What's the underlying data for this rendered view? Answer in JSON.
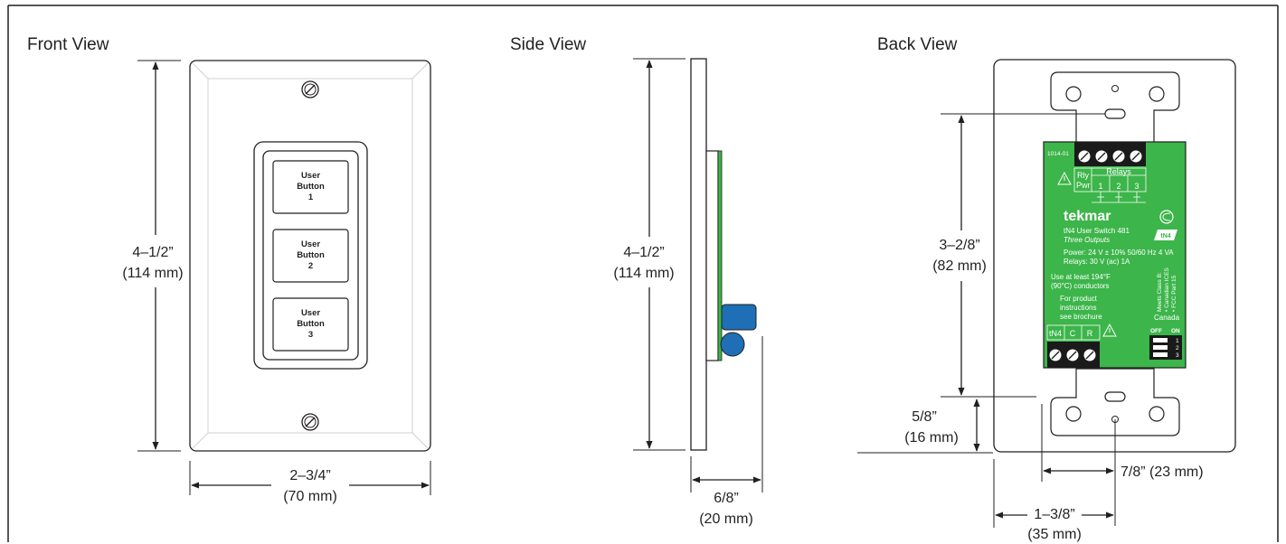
{
  "views": {
    "front": {
      "title": "Front View",
      "height_dim": {
        "imperial": "4–1/2”",
        "metric": "(114 mm)"
      },
      "width_dim": {
        "imperial": "2–3/4”",
        "metric": "(70 mm)"
      },
      "buttons": [
        {
          "line1": "User",
          "line2": "Button",
          "line3": "1"
        },
        {
          "line1": "User",
          "line2": "Button",
          "line3": "2"
        },
        {
          "line1": "User",
          "line2": "Button",
          "line3": "3"
        }
      ]
    },
    "side": {
      "title": "Side View",
      "height_dim": {
        "imperial": "4–1/2”",
        "metric": "(114 mm)"
      },
      "depth_dim": {
        "imperial": "6/8”",
        "metric": "(20 mm)"
      }
    },
    "back": {
      "title": "Back View",
      "hole_spacing_dim": {
        "imperial": "3–2/8”",
        "metric": "(82 mm)"
      },
      "bottom_offset_dim": {
        "imperial": "5/8”",
        "metric": "(16 mm)"
      },
      "center_offset_dim": {
        "label": "7/8” (23 mm)"
      },
      "side_offset_dim": {
        "imperial": "1–3/8”",
        "metric": "(35 mm)"
      },
      "pcb": {
        "part_no": "1014-01",
        "rly": "Rly",
        "pwr": "Pwr",
        "relays_label": "Relays",
        "relay_numbers": [
          "1",
          "2",
          "3"
        ],
        "brand": "tekmar",
        "product": "tN4 User Switch 481",
        "outputs": "Three Outputs",
        "power": "Power: 24 V ± 10% 50/60 Hz 4 VA",
        "relays_rating": "Relays: 30 V (ac) 1A",
        "conductors_line1": "Use at least 194°F",
        "conductors_line2": "(90°C) conductors",
        "instr_line1": "For product",
        "instr_line2": "instructions",
        "instr_line3": "see brochure",
        "terminals": [
          "tN4",
          "C",
          "R"
        ],
        "canada": "Canada",
        "compliance": "Meets Class B:",
        "compliance_1": "• Canadian ICES",
        "compliance_2": "• FCC Part 15",
        "dip_off": "OFF",
        "dip_on": "ON",
        "dip_switches": [
          "1",
          "2",
          "3"
        ],
        "badge_tn4": "tN4"
      }
    }
  },
  "colors": {
    "pcb_green": "#3cb54a",
    "terminal_black": "#1a1a1a",
    "connector_blue": "#1e6fb5",
    "outline": "#231f20"
  }
}
